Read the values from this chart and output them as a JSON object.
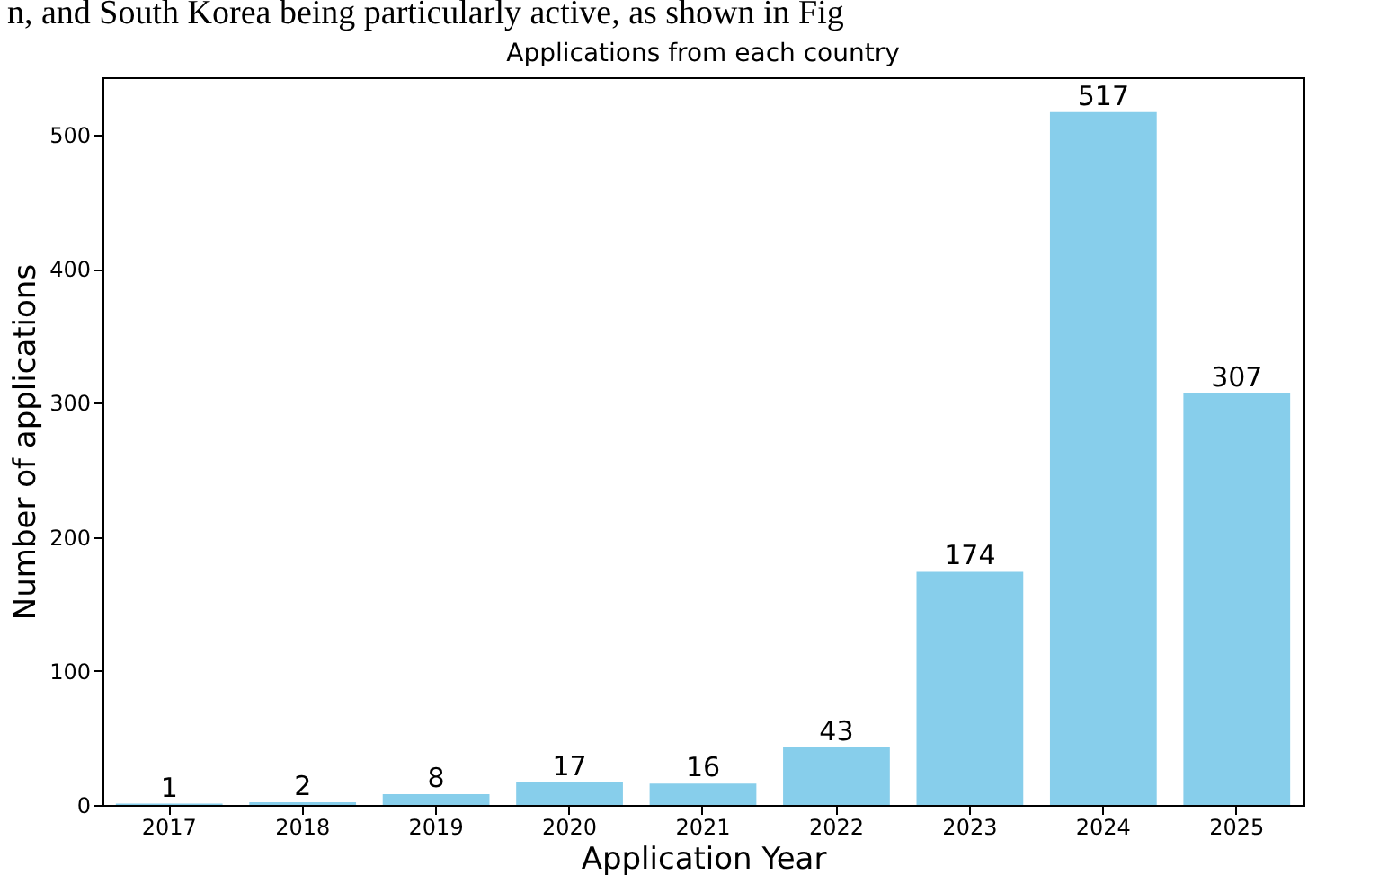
{
  "chart_data": {
    "type": "bar",
    "title": "Applications from each country",
    "xlabel": "Application Year",
    "ylabel": "Number of applications",
    "annotations": [
      "n, and South Korea being particularly active, as shown in Fig"
    ],
    "categories": [
      "2017",
      "2018",
      "2019",
      "2020",
      "2021",
      "2022",
      "2023",
      "2024",
      "2025"
    ],
    "values": [
      1,
      2,
      8,
      17,
      16,
      43,
      174,
      517,
      307
    ],
    "color": "#87ceeb",
    "ylim": [
      0,
      543
    ],
    "yticks": [
      0,
      100,
      200,
      300,
      400,
      500
    ],
    "data_labels": true,
    "grid": false
  }
}
